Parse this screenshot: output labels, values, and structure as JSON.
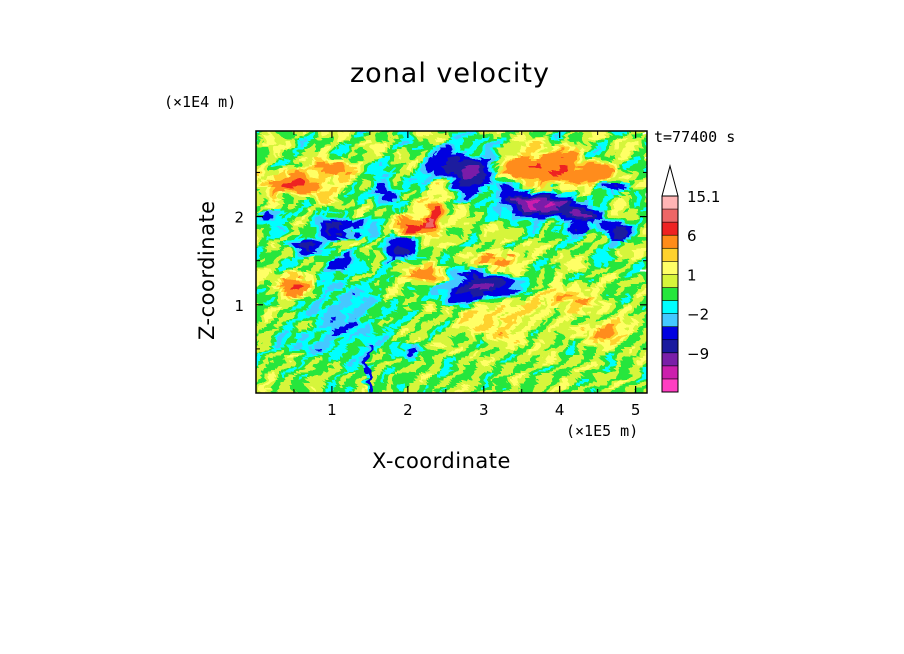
{
  "chart_data": {
    "type": "heatmap",
    "title": "zonal velocity",
    "xlabel": "X-coordinate",
    "ylabel": "Z-coordinate",
    "x_multiplier": "(×1E5 m)",
    "y_multiplier": "(×1E4 m)",
    "time_label": "t=77400 s",
    "xlim": [
      0,
      5.15
    ],
    "ylim": [
      0,
      2.97
    ],
    "x_ticks": [
      1,
      2,
      3,
      4,
      5
    ],
    "y_ticks": [
      1,
      2
    ],
    "colorbar": {
      "extend_max": true,
      "levels": [
        -15,
        -12,
        -9,
        -6,
        -3,
        -2,
        -1,
        0,
        1,
        2,
        3,
        6,
        9,
        12,
        15.1
      ],
      "colors": [
        "#ff3fc2",
        "#cc1fad",
        "#7a1fa8",
        "#1a1a9e",
        "#0000e0",
        "#44c8ff",
        "#00ffff",
        "#25e63c",
        "#d6f53b",
        "#ffff66",
        "#ffd22e",
        "#ff8c1a",
        "#ee2222",
        "#ee6666",
        "#ffb5b5"
      ],
      "labels": [
        {
          "value": 15.1,
          "text": "15.1"
        },
        {
          "value": 6,
          "text": "6"
        },
        {
          "value": 1,
          "text": "1"
        },
        {
          "value": -2,
          "text": "−2"
        },
        {
          "value": -9,
          "text": "−9"
        }
      ]
    },
    "field_features": [
      {
        "x": 2.75,
        "z": 2.5,
        "amp": -10,
        "sx": 0.28,
        "sz": 0.16
      },
      {
        "x": 2.95,
        "z": 1.2,
        "amp": -10,
        "sx": 0.3,
        "sz": 0.1
      },
      {
        "x": 3.5,
        "z": 2.2,
        "amp": -9,
        "sx": 0.18,
        "sz": 0.1
      },
      {
        "x": 3.85,
        "z": 2.12,
        "amp": -10,
        "sx": 0.22,
        "sz": 0.09
      },
      {
        "x": 4.3,
        "z": 2.0,
        "amp": -9,
        "sx": 0.2,
        "sz": 0.1
      },
      {
        "x": 4.75,
        "z": 1.8,
        "amp": -8,
        "sx": 0.12,
        "sz": 0.06
      },
      {
        "x": 1.12,
        "z": 1.9,
        "amp": -8,
        "sx": 0.22,
        "sz": 0.07
      },
      {
        "x": 0.65,
        "z": 1.65,
        "amp": -7,
        "sx": 0.15,
        "sz": 0.06
      },
      {
        "x": 1.9,
        "z": 1.6,
        "amp": -7,
        "sx": 0.12,
        "sz": 0.08
      },
      {
        "x": 1.1,
        "z": 1.45,
        "amp": -4,
        "sx": 0.12,
        "sz": 0.05
      },
      {
        "x": 2.3,
        "z": 1.95,
        "amp": 12,
        "sx": 0.09,
        "sz": 0.08
      },
      {
        "x": 2.05,
        "z": 1.88,
        "amp": 8,
        "sx": 0.1,
        "sz": 0.07
      },
      {
        "x": 3.65,
        "z": 2.58,
        "amp": 6,
        "sx": 0.35,
        "sz": 0.1
      },
      {
        "x": 4.25,
        "z": 2.48,
        "amp": 5,
        "sx": 0.3,
        "sz": 0.09
      },
      {
        "x": 0.5,
        "z": 2.35,
        "amp": 6,
        "sx": 0.3,
        "sz": 0.1
      },
      {
        "x": 1.0,
        "z": 2.55,
        "amp": 5,
        "sx": 0.15,
        "sz": 0.08
      },
      {
        "x": 0.5,
        "z": 1.22,
        "amp": 6,
        "sx": 0.15,
        "sz": 0.08
      },
      {
        "x": 1.2,
        "z": 1.85,
        "amp": 4,
        "sx": 0.12,
        "sz": 0.06
      },
      {
        "x": 2.2,
        "z": 1.35,
        "amp": 5,
        "sx": 0.15,
        "sz": 0.07
      },
      {
        "x": 3.2,
        "z": 1.5,
        "amp": 4,
        "sx": 0.2,
        "sz": 0.06
      },
      {
        "x": 4.1,
        "z": 1.05,
        "amp": 3,
        "sx": 0.3,
        "sz": 0.08
      },
      {
        "x": 4.6,
        "z": 0.7,
        "amp": 3,
        "sx": 0.25,
        "sz": 0.08
      },
      {
        "x": 1.15,
        "z": 0.85,
        "amp": -2.5,
        "sx": 0.35,
        "sz": 0.35
      },
      {
        "x": 3.2,
        "z": 0.85,
        "amp": 2.5,
        "sx": 0.3,
        "sz": 0.2
      },
      {
        "x": 0.5,
        "z": 0.55,
        "amp": -1.5,
        "sx": 0.25,
        "sz": 0.06
      },
      {
        "x": 2.0,
        "z": 0.45,
        "amp": -2.5,
        "sx": 0.15,
        "sz": 0.05
      },
      {
        "x": 1.47,
        "z": 0.15,
        "amp": -6,
        "sx": 0.02,
        "sz": 0.25
      },
      {
        "x": 2.5,
        "z": 2.3,
        "amp": 5,
        "sx": 0.12,
        "sz": 0.1
      },
      {
        "x": 1.7,
        "z": 2.3,
        "amp": -6,
        "sx": 0.1,
        "sz": 0.1
      },
      {
        "x": 0.2,
        "z": 2.0,
        "amp": -4,
        "sx": 0.12,
        "sz": 0.05
      },
      {
        "x": 4.8,
        "z": 2.3,
        "amp": -5,
        "sx": 0.15,
        "sz": 0.05
      }
    ]
  }
}
